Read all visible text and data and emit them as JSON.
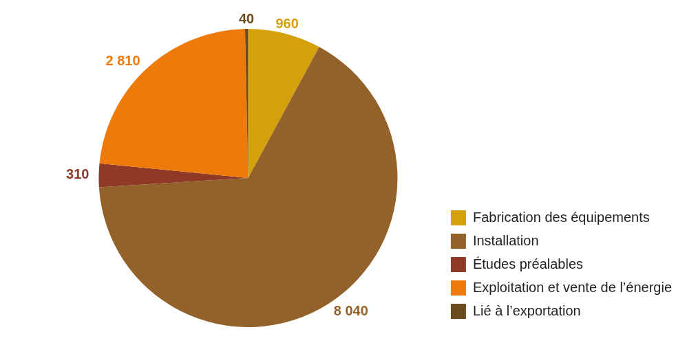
{
  "chart_data": {
    "type": "pie",
    "categories": [
      "Fabrication des équipements",
      "Installation",
      "Études préalables",
      "Exploitation et vente de l’énergie",
      "Lié à l’exportation"
    ],
    "values": [
      960,
      8040,
      310,
      2810,
      40
    ],
    "value_labels": [
      "960",
      "8 040",
      "310",
      "2 810",
      "40"
    ],
    "colors": [
      "#d4a00c",
      "#93622a",
      "#8e3a26",
      "#ef7a0c",
      "#6b4a1c"
    ],
    "legend": "bottom right"
  }
}
